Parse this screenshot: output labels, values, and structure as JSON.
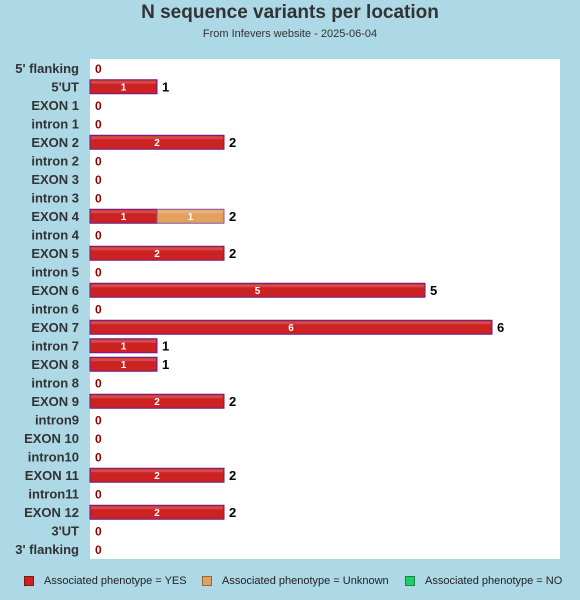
{
  "chart_data": {
    "type": "bar",
    "orientation": "horizontal",
    "stacked": true,
    "title": "N sequence variants per location",
    "subtitle": "From Infevers website - 2025-06-04",
    "categories": [
      "5' flanking",
      "5'UT",
      "EXON 1",
      "intron 1",
      "EXON 2",
      "intron 2",
      "EXON 3",
      "intron 3",
      "EXON 4",
      "intron 4",
      "EXON 5",
      "intron 5",
      "EXON 6",
      "intron 6",
      "EXON 7",
      "intron 7",
      "EXON 8",
      "intron 8",
      "EXON 9",
      "intron9",
      "EXON 10",
      "intron10",
      "EXON 11",
      "intron11",
      "EXON 12",
      "3'UT",
      "3' flanking"
    ],
    "series": [
      {
        "name": "Associated phenotype = YES",
        "color": "#cc2222",
        "values": [
          0,
          1,
          0,
          0,
          2,
          0,
          0,
          0,
          1,
          0,
          2,
          0,
          5,
          0,
          6,
          1,
          1,
          0,
          2,
          0,
          0,
          0,
          2,
          0,
          2,
          0,
          0
        ]
      },
      {
        "name": "Associated phenotype = Unknown",
        "color": "#e3a05e",
        "values": [
          0,
          0,
          0,
          0,
          0,
          0,
          0,
          0,
          1,
          0,
          0,
          0,
          0,
          0,
          0,
          0,
          0,
          0,
          0,
          0,
          0,
          0,
          0,
          0,
          0,
          0,
          0
        ]
      },
      {
        "name": "Associated phenotype = NO",
        "color": "#22cc66",
        "values": [
          0,
          0,
          0,
          0,
          0,
          0,
          0,
          0,
          0,
          0,
          0,
          0,
          0,
          0,
          0,
          0,
          0,
          0,
          0,
          0,
          0,
          0,
          0,
          0,
          0,
          0,
          0
        ]
      }
    ],
    "totals": [
      0,
      1,
      0,
      0,
      2,
      0,
      0,
      0,
      2,
      0,
      2,
      0,
      5,
      0,
      6,
      1,
      1,
      0,
      2,
      0,
      0,
      0,
      2,
      0,
      2,
      0,
      0
    ],
    "xlim": [
      0,
      6
    ],
    "grid": false,
    "legend_position": "bottom",
    "background": "#add8e6",
    "plot_background": "#ffffff"
  }
}
